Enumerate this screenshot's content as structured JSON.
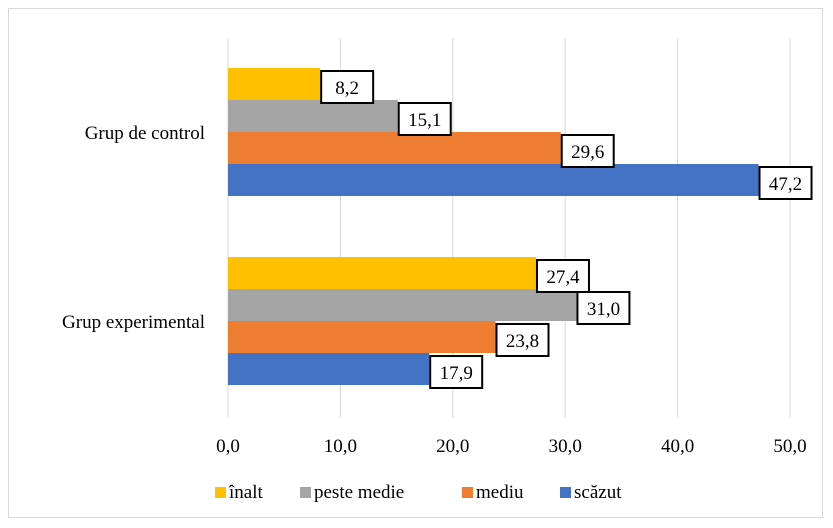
{
  "chart_data": {
    "type": "bar",
    "orientation": "horizontal",
    "categories": [
      "Grup de control",
      "Grup experimental"
    ],
    "series": [
      {
        "name": "înalt",
        "values": [
          8.2,
          27.4
        ],
        "color": "#FFC000"
      },
      {
        "name": "peste medie",
        "values": [
          15.1,
          31.0
        ],
        "color": "#A5A5A5"
      },
      {
        "name": "mediu",
        "values": [
          29.6,
          23.8
        ],
        "color": "#ED7D31"
      },
      {
        "name": "scăzut",
        "values": [
          47.2,
          17.9
        ],
        "color": "#4472C4"
      }
    ],
    "data_labels": [
      [
        "8,2",
        "27,4"
      ],
      [
        "15,1",
        "31,0"
      ],
      [
        "29,6",
        "23,8"
      ],
      [
        "47,2",
        "17,9"
      ]
    ],
    "x_ticks": [
      "0,0",
      "10,0",
      "20,0",
      "30,0",
      "40,0",
      "50,0"
    ],
    "xlim": [
      0,
      50
    ],
    "grid": true,
    "legend_position": "bottom",
    "title": "",
    "xlabel": "",
    "ylabel": ""
  }
}
